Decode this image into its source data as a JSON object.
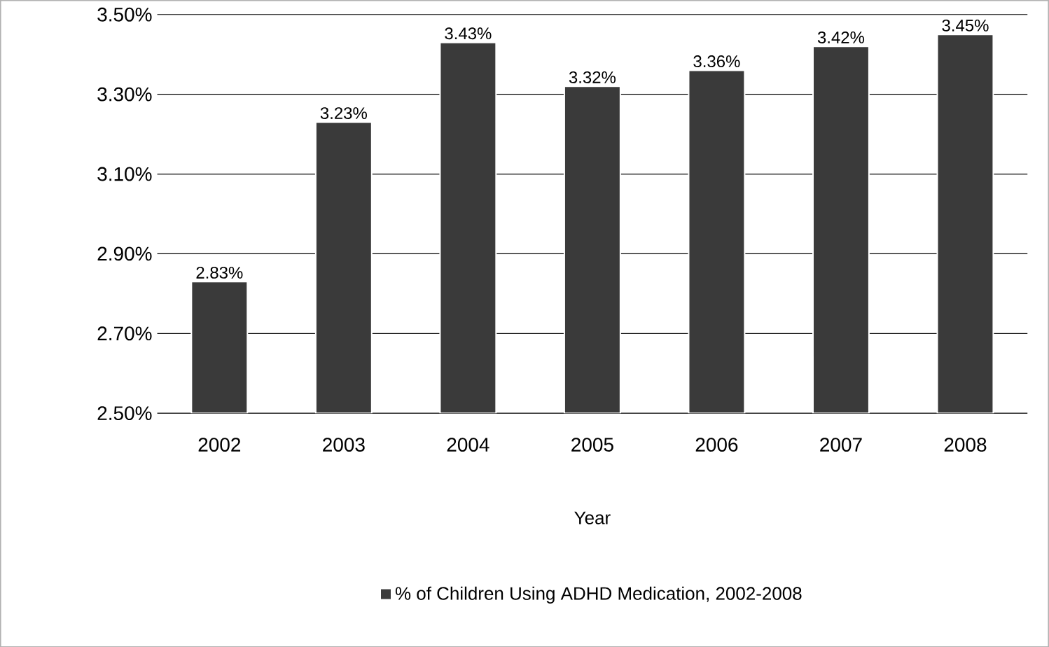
{
  "chart_data": {
    "type": "bar",
    "xlabel": "Year",
    "categories": [
      "2002",
      "2003",
      "2004",
      "2005",
      "2006",
      "2007",
      "2008"
    ],
    "series": [
      {
        "name": "% of Children Using ADHD Medication, 2002-2008",
        "color": "#3a3a3a",
        "values": [
          2.83,
          3.23,
          3.43,
          3.32,
          3.36,
          3.42,
          3.45
        ],
        "value_labels": [
          "2.83%",
          "3.23%",
          "3.43%",
          "3.32%",
          "3.36%",
          "3.42%",
          "3.45%"
        ]
      }
    ],
    "ylim": [
      2.5,
      3.5
    ],
    "yticks": [
      {
        "value": 2.5,
        "label": "2.50%"
      },
      {
        "value": 2.7,
        "label": "2.70%"
      },
      {
        "value": 2.9,
        "label": "2.90%"
      },
      {
        "value": 3.1,
        "label": "3.10%"
      },
      {
        "value": 3.3,
        "label": "3.30%"
      },
      {
        "value": 3.5,
        "label": "3.50%"
      }
    ],
    "grid": "y",
    "legend": "bottom"
  }
}
